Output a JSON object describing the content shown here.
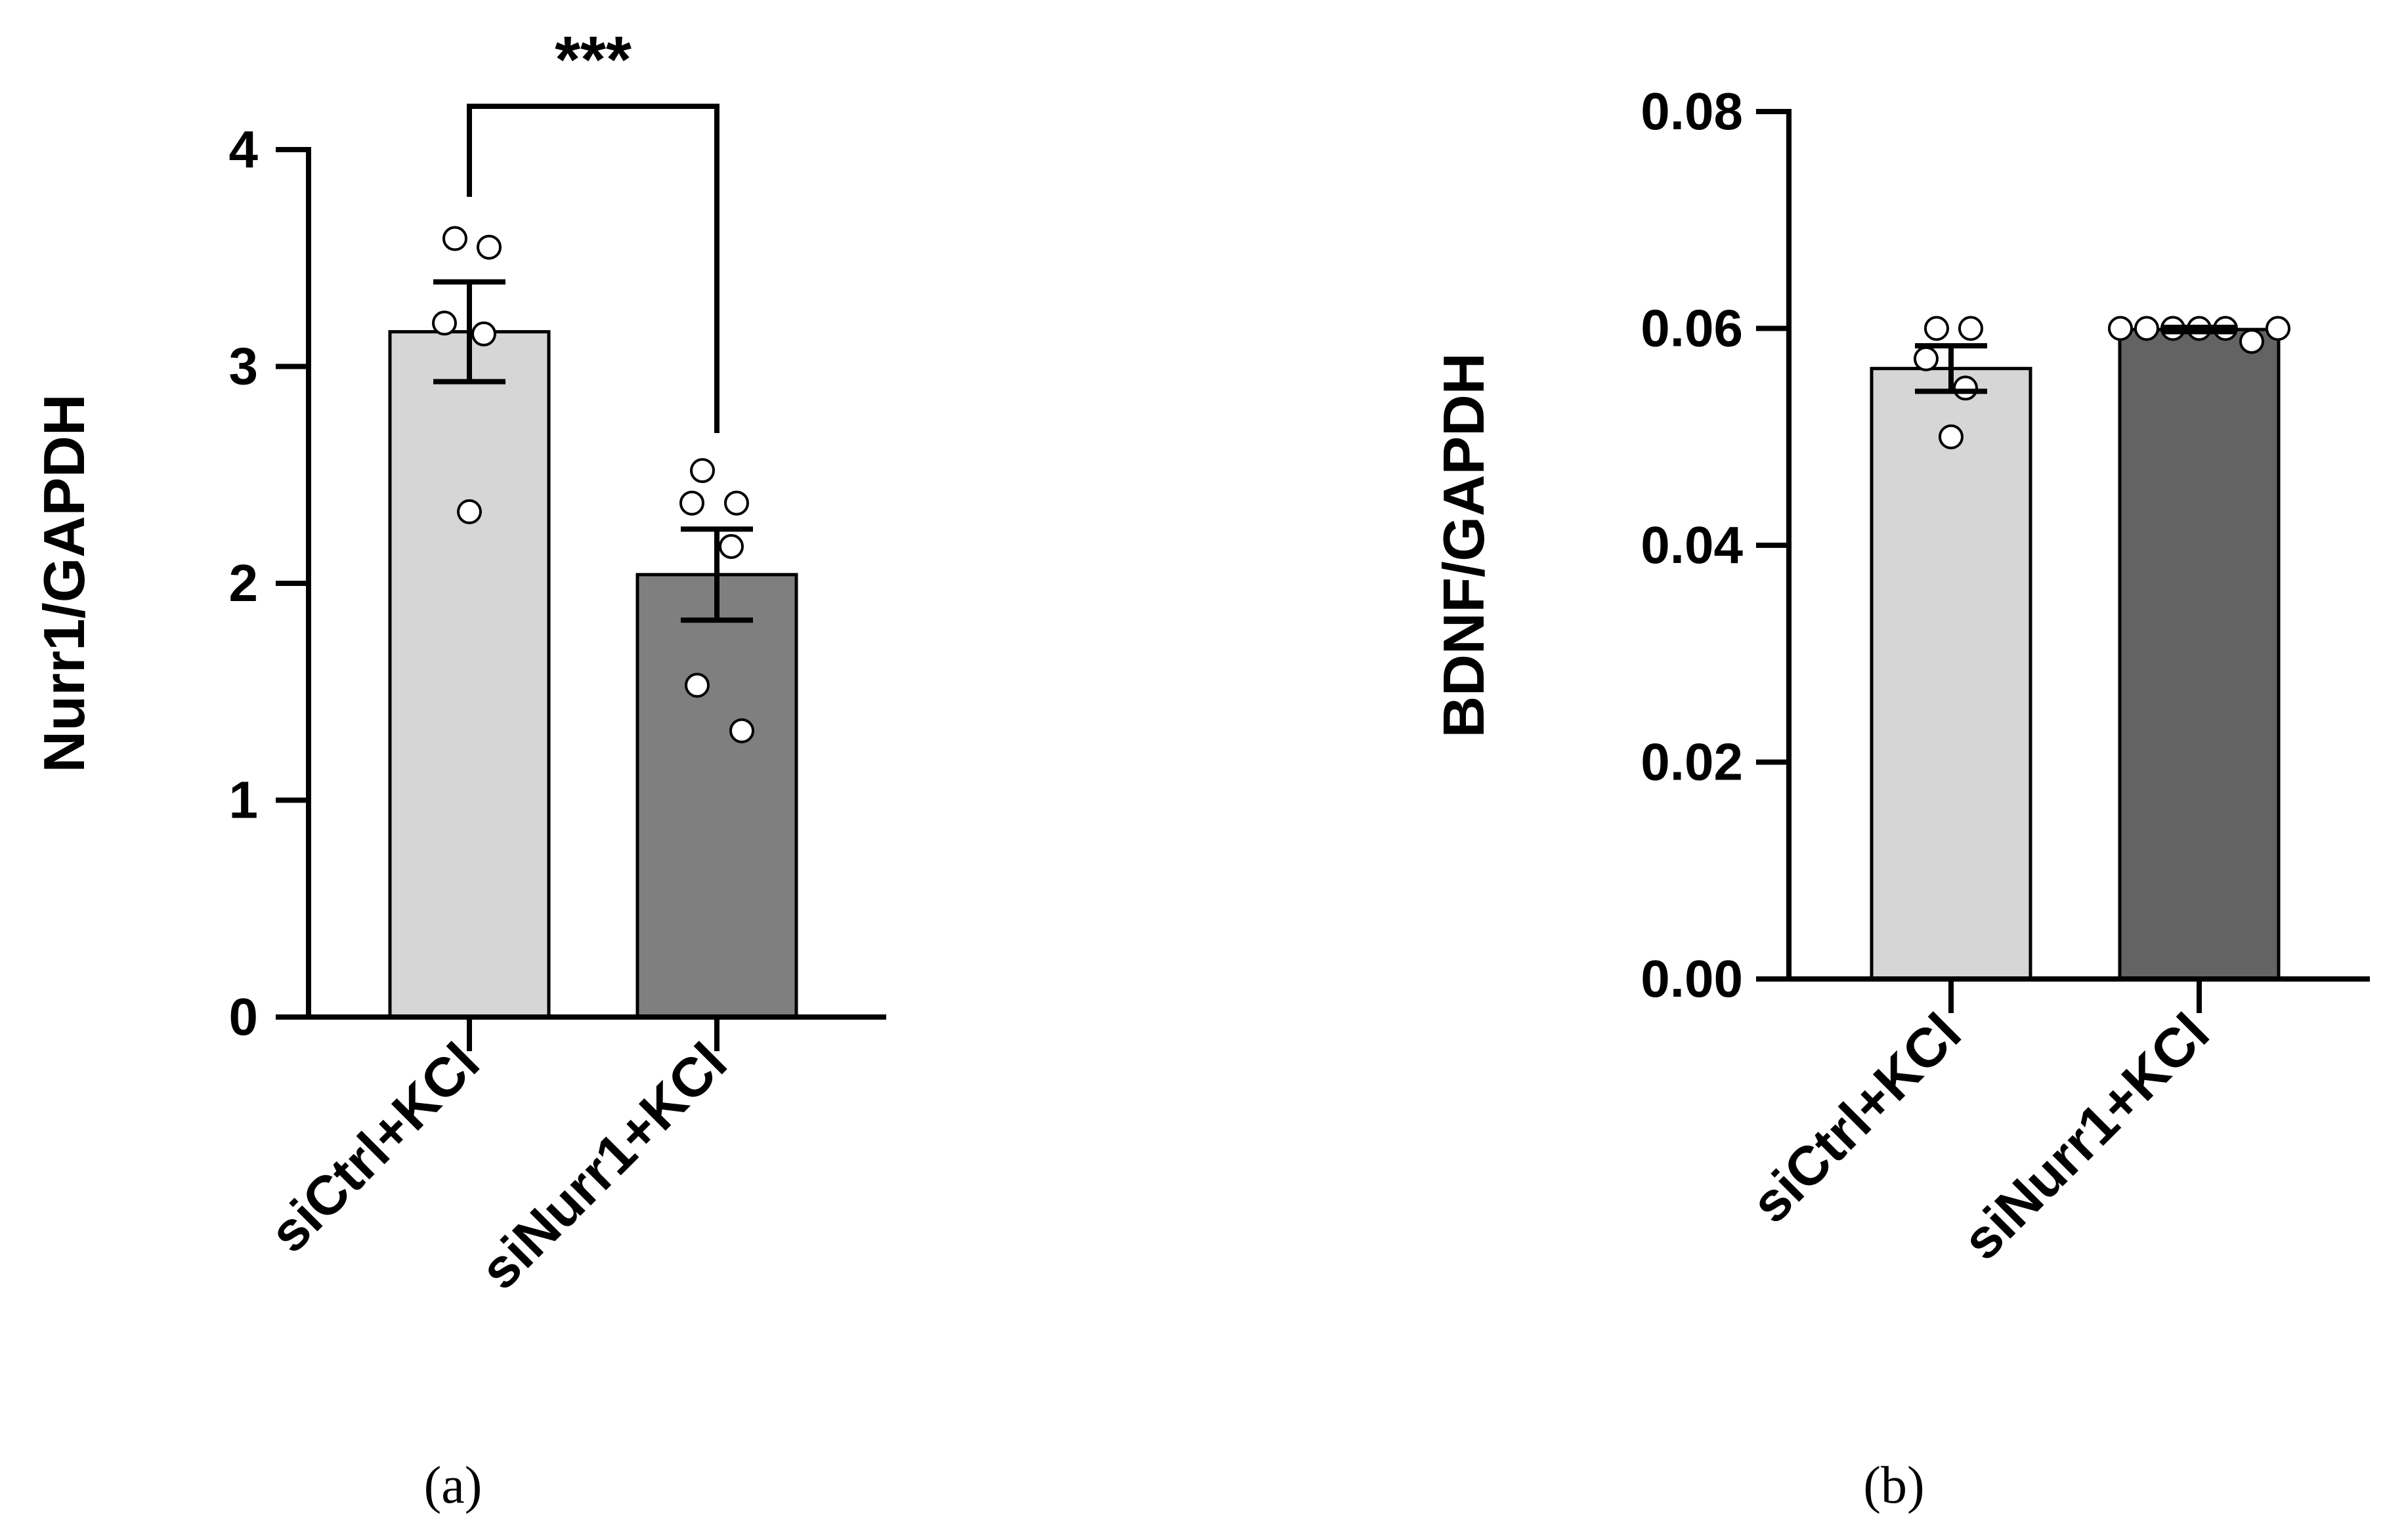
{
  "chart_data": [
    {
      "type": "bar",
      "panel_label": "(a)",
      "ylabel": "Nurr1/GAPDH",
      "ylim": [
        0,
        4
      ],
      "yticks": [
        0,
        1,
        2,
        3,
        4
      ],
      "ytick_labels": [
        "0",
        "1",
        "2",
        "3",
        "4"
      ],
      "categories": [
        "siCtrl+KCl",
        "siNurr1+KCl"
      ],
      "values": [
        3.16,
        2.04
      ],
      "sem": [
        0.23,
        0.21
      ],
      "bar_colors": [
        "#d6d6d6",
        "#7f7f7f"
      ],
      "points": [
        [
          3.59,
          3.55,
          3.2,
          3.15,
          2.33
        ],
        [
          2.52,
          2.37,
          2.37,
          2.17,
          1.53,
          1.32
        ]
      ],
      "significance": {
        "label": "***",
        "between": [
          0,
          1
        ]
      }
    },
    {
      "type": "bar",
      "panel_label": "(b)",
      "ylabel": "BDNF/GAPDH",
      "ylim": [
        0,
        0.08
      ],
      "yticks": [
        0,
        0.02,
        0.04,
        0.06,
        0.08
      ],
      "ytick_labels": [
        "0.00",
        "0.02",
        "0.04",
        "0.06",
        "0.08"
      ],
      "categories": [
        "siCtrl+KCl",
        "siNurr1+KCl"
      ],
      "values": [
        0.0563,
        0.0599
      ],
      "sem": [
        0.0021,
        0.0002
      ],
      "bar_colors": [
        "#d6d6d6",
        "#636363"
      ],
      "points": [
        [
          0.06,
          0.06,
          0.0572,
          0.0545,
          0.05
        ],
        [
          0.06,
          0.06,
          0.06,
          0.06,
          0.06,
          0.0588,
          0.06
        ]
      ]
    }
  ]
}
